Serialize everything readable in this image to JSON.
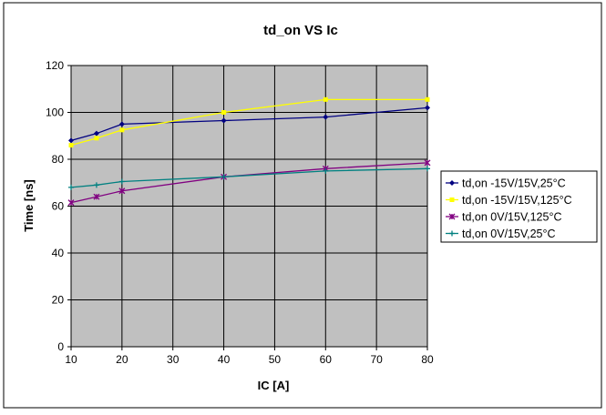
{
  "chart_data": {
    "type": "line",
    "title": "td_on VS Ic",
    "xlabel": "IC [A]",
    "ylabel": "Time [ns]",
    "xlim": [
      10,
      80
    ],
    "ylim": [
      0,
      120
    ],
    "xticks": [
      10,
      20,
      30,
      40,
      50,
      60,
      70,
      80
    ],
    "yticks": [
      0,
      20,
      40,
      60,
      80,
      100,
      120
    ],
    "grid": true,
    "plot_background": "#c0c0c0",
    "legend_position": "right",
    "x": [
      10,
      15,
      20,
      40,
      60,
      80
    ],
    "series": [
      {
        "name": "td,on -15V/15V,25°C",
        "color": "#000080",
        "marker": "diamond",
        "values": [
          88,
          91,
          95,
          96.5,
          98,
          102
        ]
      },
      {
        "name": "td,on -15V/15V,125°C",
        "color": "#ffff00",
        "marker": "square",
        "values": [
          86,
          89,
          92.5,
          100,
          105.5,
          105.5
        ]
      },
      {
        "name": "td,on 0V/15V,125°C",
        "color": "#800080",
        "marker": "star",
        "values": [
          61.5,
          64,
          66.5,
          72.5,
          76,
          78.5
        ]
      },
      {
        "name": "td,on 0V/15V,25°C",
        "color": "#008080",
        "marker": "plus",
        "values": [
          68,
          69,
          70.5,
          72.5,
          75,
          76
        ]
      }
    ]
  }
}
